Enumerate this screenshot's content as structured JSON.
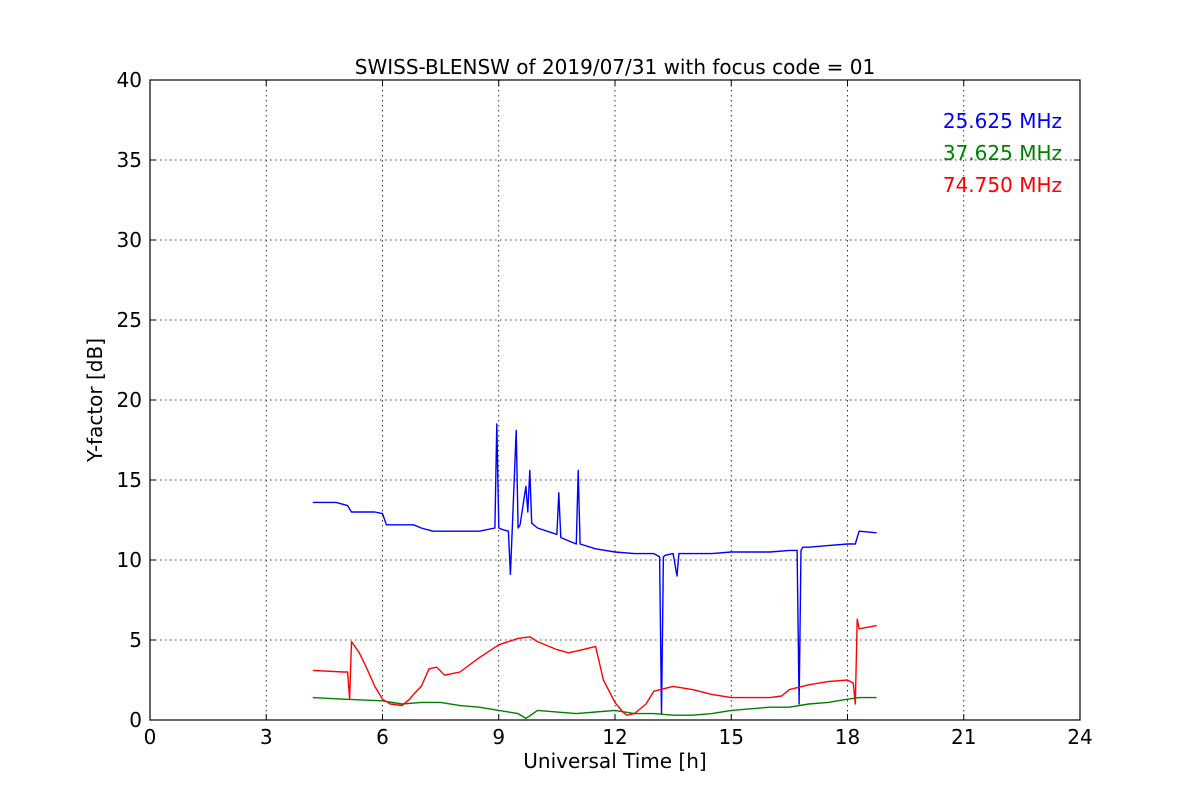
{
  "chart_data": {
    "type": "line",
    "title": "SWISS-BLENSW of 2019/07/31 with focus code = 01",
    "xlabel": "Universal Time [h]",
    "ylabel": "Y-factor [dB]",
    "xlim": [
      0,
      24
    ],
    "ylim": [
      0,
      40
    ],
    "xticks": [
      0,
      3,
      6,
      9,
      12,
      15,
      18,
      21,
      24
    ],
    "yticks": [
      0,
      5,
      10,
      15,
      20,
      25,
      30,
      35,
      40
    ],
    "xtick_labels": [
      "0",
      "3",
      "6",
      "9",
      "12",
      "15",
      "18",
      "21",
      "24"
    ],
    "ytick_labels": [
      "0",
      "5",
      "10",
      "15",
      "20",
      "25",
      "30",
      "35",
      "40"
    ],
    "grid": true,
    "legend_position": "top-right",
    "series": [
      {
        "name": "25.625 MHz",
        "color": "#0000ff",
        "x": [
          4.2,
          4.8,
          5.1,
          5.2,
          5.8,
          6.0,
          6.1,
          6.8,
          7.0,
          7.3,
          8.0,
          8.5,
          8.9,
          8.95,
          9.0,
          9.1,
          9.25,
          9.3,
          9.35,
          9.45,
          9.5,
          9.55,
          9.7,
          9.75,
          9.8,
          9.85,
          10.0,
          10.5,
          10.55,
          10.6,
          11.0,
          11.05,
          11.1,
          11.5,
          12.0,
          12.5,
          13.0,
          13.15,
          13.2,
          13.25,
          13.3,
          13.5,
          13.6,
          13.65,
          14.0,
          14.5,
          15.0,
          15.5,
          16.0,
          16.5,
          16.7,
          16.75,
          16.8,
          16.85,
          17.0,
          17.5,
          18.0,
          18.2,
          18.3,
          18.75
        ],
        "y": [
          13.6,
          13.6,
          13.4,
          13.0,
          13.0,
          12.9,
          12.2,
          12.2,
          12.0,
          11.8,
          11.8,
          11.8,
          12.0,
          18.5,
          12.0,
          11.9,
          11.8,
          9.1,
          12.0,
          18.1,
          12.0,
          12.2,
          14.6,
          13.0,
          15.6,
          12.3,
          12.0,
          11.6,
          14.2,
          11.4,
          11.0,
          15.6,
          11.0,
          10.7,
          10.5,
          10.4,
          10.4,
          10.2,
          0.4,
          10.2,
          10.3,
          10.4,
          9.0,
          10.4,
          10.4,
          10.4,
          10.5,
          10.5,
          10.5,
          10.6,
          10.6,
          1.0,
          10.6,
          10.8,
          10.8,
          10.9,
          11.0,
          11.0,
          11.8,
          11.7
        ]
      },
      {
        "name": "37.625 MHz",
        "color": "#008000",
        "x": [
          4.2,
          5.0,
          6.0,
          6.5,
          7.0,
          7.5,
          8.0,
          8.5,
          9.0,
          9.5,
          9.7,
          10.0,
          11.0,
          11.5,
          12.0,
          12.5,
          13.0,
          13.5,
          14.0,
          14.5,
          15.0,
          15.5,
          16.0,
          16.5,
          17.0,
          17.5,
          18.0,
          18.3,
          18.75
        ],
        "y": [
          1.4,
          1.3,
          1.2,
          1.0,
          1.1,
          1.1,
          0.9,
          0.8,
          0.6,
          0.4,
          0.1,
          0.6,
          0.4,
          0.5,
          0.6,
          0.4,
          0.4,
          0.3,
          0.3,
          0.4,
          0.6,
          0.7,
          0.8,
          0.8,
          1.0,
          1.1,
          1.3,
          1.4,
          1.4
        ]
      },
      {
        "name": "74.750 MHz",
        "color": "#ff0000",
        "x": [
          4.2,
          5.0,
          5.1,
          5.15,
          5.2,
          5.4,
          5.6,
          5.8,
          6.0,
          6.2,
          6.5,
          6.7,
          6.8,
          7.0,
          7.2,
          7.4,
          7.6,
          7.8,
          8.0,
          8.5,
          9.0,
          9.5,
          9.8,
          10.0,
          10.5,
          10.8,
          11.0,
          11.5,
          11.7,
          12.0,
          12.2,
          12.3,
          12.5,
          12.8,
          13.0,
          13.5,
          14.0,
          14.5,
          15.0,
          15.5,
          16.0,
          16.3,
          16.5,
          17.0,
          17.5,
          18.0,
          18.15,
          18.2,
          18.25,
          18.3,
          18.75
        ],
        "y": [
          3.1,
          3.0,
          3.0,
          1.3,
          4.9,
          4.2,
          3.2,
          2.1,
          1.3,
          1.0,
          0.9,
          1.3,
          1.6,
          2.1,
          3.2,
          3.3,
          2.8,
          2.9,
          3.0,
          3.9,
          4.7,
          5.1,
          5.2,
          4.9,
          4.4,
          4.2,
          4.3,
          4.6,
          2.5,
          1.1,
          0.5,
          0.3,
          0.4,
          1.0,
          1.8,
          2.1,
          1.9,
          1.6,
          1.4,
          1.4,
          1.4,
          1.5,
          1.9,
          2.2,
          2.4,
          2.5,
          2.3,
          1.0,
          6.3,
          5.7,
          5.9
        ]
      }
    ]
  }
}
